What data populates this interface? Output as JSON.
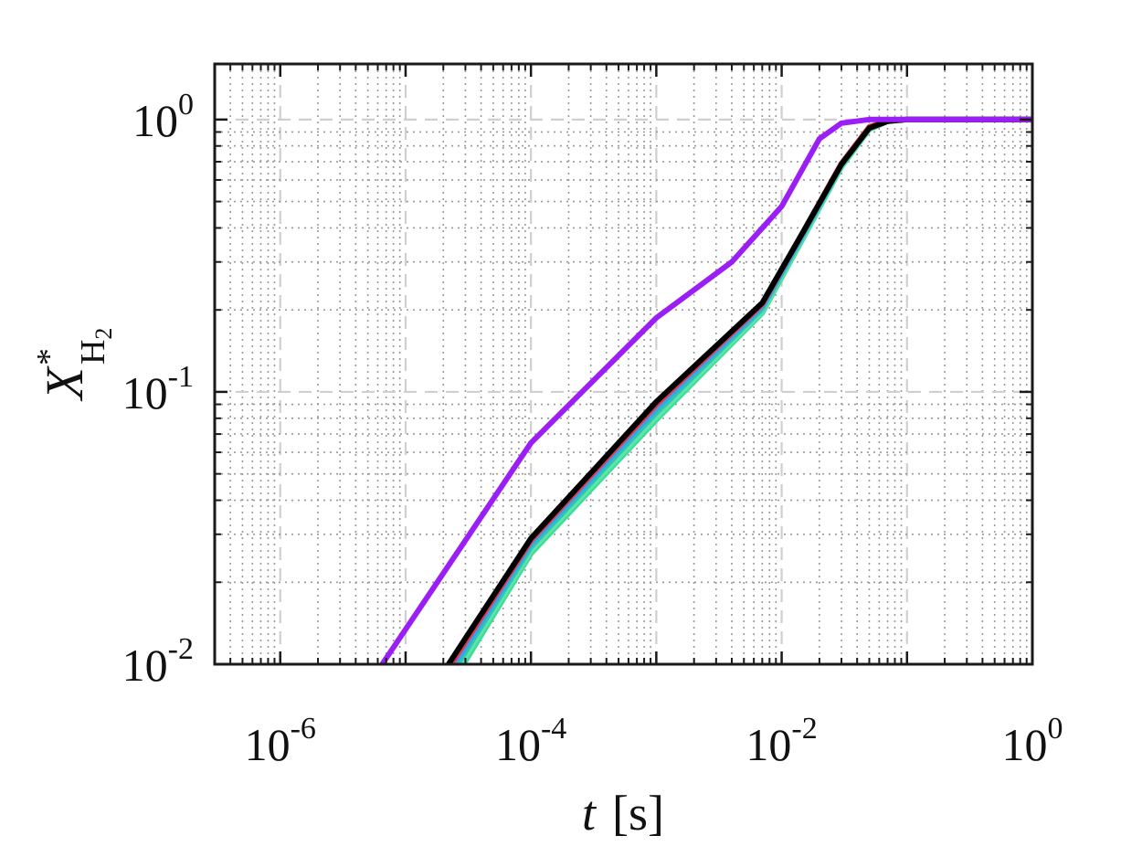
{
  "chart_data": {
    "type": "line",
    "title": "",
    "xlabel": {
      "var": "t",
      "unit": "[s]"
    },
    "ylabel": {
      "var": "X",
      "sup": "*",
      "sub": "H",
      "subsub": "2"
    },
    "xscale": "log",
    "yscale": "log",
    "xlim": [
      3e-07,
      1
    ],
    "ylim": [
      0.01,
      1.6
    ],
    "xticks": [
      {
        "value": 1e-06,
        "base": "10",
        "exp": "-6"
      },
      {
        "value": 0.0001,
        "base": "10",
        "exp": "-4"
      },
      {
        "value": 0.01,
        "base": "10",
        "exp": "-2"
      },
      {
        "value": 1,
        "base": "10",
        "exp": "0"
      }
    ],
    "yticks": [
      {
        "value": 0.01,
        "base": "10",
        "exp": "-2"
      },
      {
        "value": 0.1,
        "base": "10",
        "exp": "-1"
      },
      {
        "value": 1,
        "base": "10",
        "exp": "0"
      }
    ],
    "grid": {
      "major": "dashed",
      "minor": "dotted"
    },
    "series": [
      {
        "color": "#3ddc97",
        "x": [
          2.9e-05,
          0.0001,
          0.001,
          0.007,
          0.015,
          0.03,
          0.05,
          0.07,
          0.1,
          1
        ],
        "y": [
          0.01,
          0.0255,
          0.079,
          0.195,
          0.37,
          0.67,
          0.92,
          0.985,
          1.0,
          1.0
        ]
      },
      {
        "color": "#5ee6a8",
        "x": [
          2.75e-05,
          0.0001,
          0.001,
          0.007,
          0.015,
          0.03,
          0.05,
          0.07,
          0.1,
          1
        ],
        "y": [
          0.01,
          0.0262,
          0.081,
          0.198,
          0.375,
          0.675,
          0.925,
          0.985,
          1.0,
          1.0
        ]
      },
      {
        "color": "#2ec4b6",
        "x": [
          2.6e-05,
          0.0001,
          0.001,
          0.007,
          0.015,
          0.03,
          0.05,
          0.07,
          0.1,
          1
        ],
        "y": [
          0.01,
          0.027,
          0.084,
          0.202,
          0.38,
          0.68,
          0.93,
          0.99,
          1.0,
          1.0
        ]
      },
      {
        "color": "#3aa0e8",
        "x": [
          2.45e-05,
          0.0001,
          0.001,
          0.007,
          0.015,
          0.03,
          0.05,
          0.07,
          0.1,
          1
        ],
        "y": [
          0.01,
          0.0278,
          0.087,
          0.206,
          0.385,
          0.685,
          0.935,
          0.99,
          1.0,
          1.0
        ]
      },
      {
        "color": "#e8364a",
        "x": [
          2.3e-05,
          0.0001,
          0.001,
          0.007,
          0.015,
          0.03,
          0.05,
          0.07,
          0.1,
          1
        ],
        "y": [
          0.01,
          0.0285,
          0.09,
          0.21,
          0.39,
          0.69,
          0.94,
          0.99,
          1.0,
          1.0
        ]
      },
      {
        "color": "#000000",
        "x": [
          2.2e-05,
          0.0001,
          0.001,
          0.007,
          0.015,
          0.03,
          0.05,
          0.07,
          0.1,
          1
        ],
        "y": [
          0.01,
          0.029,
          0.092,
          0.212,
          0.39,
          0.685,
          0.93,
          0.985,
          1.0,
          1.0
        ]
      },
      {
        "color": "#9b1ff5",
        "x": [
          6.5e-06,
          0.0001,
          0.001,
          0.004,
          0.01,
          0.02,
          0.03,
          0.05,
          0.1,
          1
        ],
        "y": [
          0.01,
          0.065,
          0.187,
          0.3,
          0.48,
          0.85,
          0.97,
          1.0,
          1.0,
          1.0
        ]
      }
    ]
  }
}
